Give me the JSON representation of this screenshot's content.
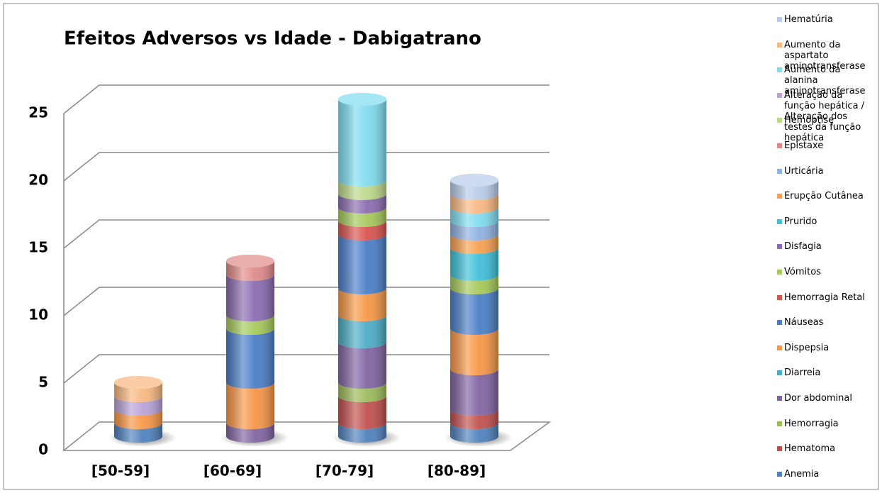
{
  "chart_data": {
    "type": "bar3d_stacked_cylinder",
    "title": "Efeitos Adversos vs Idade - Dabigatrano",
    "categories": [
      "[50-59]",
      "[60-69]",
      "[70-79]",
      "[80-89]"
    ],
    "ylim": [
      0,
      25
    ],
    "yticks": [
      0,
      5,
      10,
      15,
      20,
      25
    ],
    "grid": true,
    "series": [
      {
        "name": "Anemia",
        "color": "#4f81bd",
        "values": [
          1,
          0,
          1,
          1
        ]
      },
      {
        "name": "Hematoma",
        "color": "#c0504d",
        "values": [
          0,
          0,
          2,
          1
        ]
      },
      {
        "name": "Hemorragia",
        "color": "#9bbb59",
        "values": [
          0,
          0,
          1,
          0
        ]
      },
      {
        "name": "Dor abdominal",
        "color": "#8064a2",
        "values": [
          0,
          1,
          3,
          3
        ]
      },
      {
        "name": "Diarreia",
        "color": "#4bacc6",
        "values": [
          0,
          0,
          2,
          0
        ]
      },
      {
        "name": "Dispepsia",
        "color": "#f79646",
        "values": [
          1,
          3,
          2,
          3
        ]
      },
      {
        "name": "Náuseas",
        "color": "#4a7ec8",
        "values": [
          0,
          4,
          4,
          3
        ]
      },
      {
        "name": "Hemorragia Retal",
        "color": "#d9534f",
        "values": [
          0,
          0,
          1,
          0
        ]
      },
      {
        "name": "Vómitos",
        "color": "#a6c95a",
        "values": [
          0,
          1,
          1,
          1
        ]
      },
      {
        "name": "Disfagia",
        "color": "#8a6bb0",
        "values": [
          0,
          3,
          1,
          0
        ]
      },
      {
        "name": "Prurido",
        "color": "#3fc0d8",
        "values": [
          0,
          0,
          0,
          2
        ]
      },
      {
        "name": "Erupção Cutânea",
        "color": "#f7a050",
        "values": [
          0,
          0,
          0,
          1
        ]
      },
      {
        "name": "Urticária",
        "color": "#8fb0e0",
        "values": [
          0,
          0,
          0,
          1
        ]
      },
      {
        "name": "Epistaxe",
        "color": "#e08a88",
        "values": [
          0,
          1,
          0,
          0
        ]
      },
      {
        "name": "Hemoptise",
        "color": "#bcd88a",
        "values": [
          0,
          0,
          1,
          0
        ]
      },
      {
        "name": "Alteração da função hepática / Alteração dos testes da função hepática",
        "color": "#b8a2d8",
        "values": [
          1,
          0,
          0,
          0
        ]
      },
      {
        "name": "Aumento da alanina aminotransferase",
        "color": "#7fdcef",
        "values": [
          0,
          0,
          6,
          1
        ]
      },
      {
        "name": "Aumento da aspartato aminotransferase",
        "color": "#f8b880",
        "values": [
          1,
          0,
          0,
          1
        ]
      },
      {
        "name": "Hematúria",
        "color": "#b8cbe8",
        "values": [
          0,
          0,
          0,
          1
        ]
      }
    ]
  }
}
